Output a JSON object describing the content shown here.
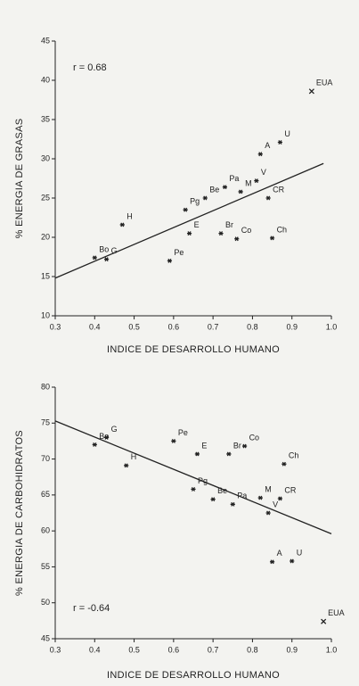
{
  "chart_data": [
    {
      "type": "scatter",
      "annotation": "r = 0.68",
      "xlabel": "INDICE DE DESARROLLO HUMANO",
      "ylabel": "% ENERGIA DE GRASAS",
      "xlim": [
        0.3,
        1.0
      ],
      "ylim": [
        10,
        45
      ],
      "xticks": [
        0.3,
        0.4,
        0.5,
        0.6,
        0.7,
        0.8,
        0.9,
        {
          "value": 1,
          "label": "1.0"
        }
      ],
      "yticks": [
        10,
        15,
        20,
        25,
        30,
        35,
        40,
        45
      ],
      "color": "#222222",
      "points": {
        "labels": [
          "Bo",
          "G",
          "H",
          "Pe",
          "Pg",
          "E",
          "Be",
          "Br",
          "Pa",
          "M",
          "Co",
          "V",
          "A",
          "CR",
          "Ch",
          "U",
          "EUA"
        ],
        "markers": [
          "star",
          "star",
          "star",
          "star",
          "star",
          "star",
          "star",
          "star",
          "star",
          "star",
          "star",
          "star",
          "star",
          "star",
          "star",
          "star",
          "x"
        ],
        "x": [
          0.4,
          0.43,
          0.47,
          0.59,
          0.63,
          0.64,
          0.68,
          0.72,
          0.73,
          0.77,
          0.76,
          0.81,
          0.82,
          0.84,
          0.85,
          0.87,
          0.95
        ],
        "y": [
          17.4,
          17.2,
          21.6,
          17.0,
          23.5,
          20.5,
          25.0,
          20.5,
          26.4,
          25.8,
          19.8,
          27.2,
          30.6,
          25.0,
          19.9,
          32.1,
          38.6
        ]
      },
      "trend": {
        "x": [
          0.3,
          0.98
        ],
        "y": [
          14.8,
          29.4
        ]
      }
    },
    {
      "type": "scatter",
      "annotation": "r = -0.64",
      "xlabel": "INDICE DE DESARROLLO HUMANO",
      "ylabel": "% ENERGIA DE CARBOHIDRATOS",
      "xlim": [
        0.3,
        1.0
      ],
      "ylim": [
        45,
        80
      ],
      "xticks": [
        0.3,
        0.4,
        0.5,
        0.6,
        0.7,
        0.8,
        0.9,
        {
          "value": 1,
          "label": "1.0"
        }
      ],
      "yticks": [
        45,
        50,
        55,
        60,
        65,
        70,
        75,
        80
      ],
      "color": "#222222",
      "points": {
        "labels": [
          "Bo",
          "G",
          "H",
          "Pe",
          "E",
          "Br",
          "Co",
          "Pg",
          "Be",
          "Pa",
          "M",
          "V",
          "CR",
          "Ch",
          "A",
          "U",
          "EUA"
        ],
        "markers": [
          "star",
          "star",
          "star",
          "star",
          "star",
          "star",
          "star",
          "star",
          "star",
          "star",
          "star",
          "star",
          "star",
          "star",
          "star",
          "star",
          "x"
        ],
        "x": [
          0.4,
          0.43,
          0.48,
          0.6,
          0.66,
          0.74,
          0.78,
          0.65,
          0.7,
          0.75,
          0.82,
          0.84,
          0.87,
          0.88,
          0.85,
          0.9,
          0.98
        ],
        "y": [
          72.0,
          73.0,
          69.1,
          72.5,
          70.7,
          70.7,
          71.8,
          65.8,
          64.4,
          63.7,
          64.6,
          62.5,
          64.5,
          69.3,
          55.7,
          55.8,
          47.4
        ]
      },
      "trend": {
        "x": [
          0.3,
          1.0
        ],
        "y": [
          75.3,
          59.6
        ]
      }
    }
  ]
}
